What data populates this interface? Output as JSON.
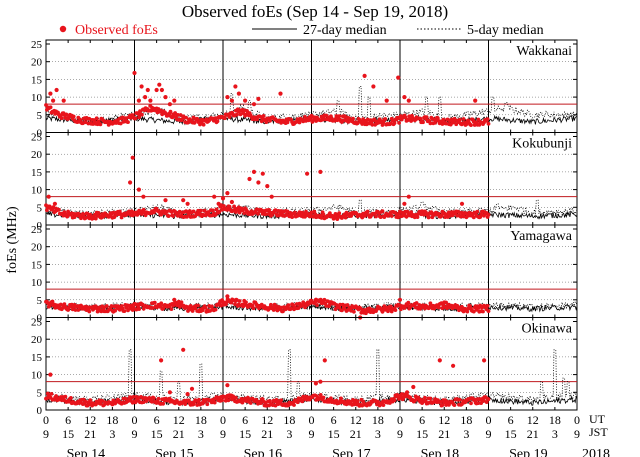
{
  "chart_data": {
    "type": "scatter",
    "title": "Observed foEs (Sep 14 - Sep 19, 2018)",
    "ylabel": "foEs (MHz)",
    "ylim": [
      0,
      25
    ],
    "yticks": [
      0,
      5,
      10,
      15,
      20,
      25
    ],
    "grid": "horizontal dotted",
    "legend": {
      "position": "top",
      "observed_label": "Observed foEs",
      "median27_label": "27-day median",
      "median5_label": "5-day median"
    },
    "colors": {
      "observed": "#e8141c",
      "threshold": "#c0191f",
      "median27": "#000000",
      "median5": "#000000"
    },
    "threshold_MHz": 8,
    "x_axis": {
      "ut_label": "UT",
      "jst_label": "JST",
      "ut_ticks": [
        "0",
        "6",
        "12",
        "18",
        "0",
        "6",
        "12",
        "18",
        "0",
        "6",
        "12",
        "18",
        "0",
        "6",
        "12",
        "18",
        "0",
        "6",
        "12",
        "18",
        "0",
        "6",
        "12",
        "18",
        "0"
      ],
      "jst_ticks": [
        "9",
        "15",
        "21",
        "3",
        "9",
        "15",
        "21",
        "3",
        "9",
        "15",
        "21",
        "3",
        "9",
        "15",
        "21",
        "3",
        "9",
        "15",
        "21",
        "3",
        "9",
        "15",
        "21",
        "3",
        "9"
      ],
      "day_labels": [
        "Sep 14",
        "Sep 15",
        "Sep 16",
        "Sep 17",
        "Sep 18",
        "Sep 19"
      ],
      "year_label": "2018",
      "days": 6
    },
    "panels": [
      {
        "station": "Wakkanai",
        "base": [
          [
            0,
            7
          ],
          [
            0.15,
            5
          ],
          [
            0.4,
            3.5
          ],
          [
            0.7,
            3
          ],
          [
            0.9,
            3.5
          ],
          [
            1.05,
            5
          ],
          [
            1.2,
            7
          ],
          [
            1.35,
            5.5
          ],
          [
            1.6,
            3.5
          ],
          [
            1.8,
            3
          ],
          [
            2.05,
            4.5
          ],
          [
            2.2,
            6
          ],
          [
            2.4,
            4
          ],
          [
            2.7,
            3
          ],
          [
            3.05,
            4
          ],
          [
            3.3,
            4
          ],
          [
            3.6,
            3
          ],
          [
            3.9,
            3
          ],
          [
            4.05,
            4
          ],
          [
            4.3,
            3.5
          ],
          [
            4.6,
            3
          ],
          [
            4.9,
            3
          ],
          [
            5.0,
            3
          ]
        ],
        "spikes": [
          [
            0.05,
            11
          ],
          [
            0.08,
            9
          ],
          [
            0.12,
            12
          ],
          [
            0.2,
            9
          ],
          [
            1.0,
            16.8
          ],
          [
            1.05,
            9
          ],
          [
            1.08,
            13
          ],
          [
            1.12,
            10
          ],
          [
            1.15,
            12
          ],
          [
            1.18,
            9
          ],
          [
            1.25,
            12
          ],
          [
            1.28,
            13.5
          ],
          [
            1.31,
            12
          ],
          [
            1.35,
            10
          ],
          [
            1.4,
            8
          ],
          [
            1.45,
            9
          ],
          [
            2.05,
            10
          ],
          [
            2.1,
            9
          ],
          [
            2.14,
            13
          ],
          [
            2.18,
            11
          ],
          [
            2.25,
            9
          ],
          [
            2.35,
            8
          ],
          [
            2.4,
            9.5
          ],
          [
            2.65,
            11
          ],
          [
            3.6,
            16
          ],
          [
            3.7,
            13
          ],
          [
            3.98,
            15.5
          ],
          [
            4.05,
            10
          ],
          [
            4.1,
            9
          ],
          [
            3.85,
            9
          ],
          [
            4.85,
            9
          ]
        ],
        "cutoff_day": 5.0,
        "median27": [
          [
            0,
            4
          ],
          [
            0.5,
            3
          ],
          [
            1,
            4
          ],
          [
            1.5,
            3
          ],
          [
            2,
            4
          ],
          [
            2.5,
            3
          ],
          [
            3,
            4
          ],
          [
            3.5,
            3
          ],
          [
            4,
            4
          ],
          [
            4.5,
            3
          ],
          [
            5,
            4
          ],
          [
            5.5,
            3
          ],
          [
            6,
            4
          ]
        ],
        "median5": [
          [
            0,
            5
          ],
          [
            0.3,
            4
          ],
          [
            0.5,
            3
          ],
          [
            1,
            5
          ],
          [
            1.25,
            6.5
          ],
          [
            1.5,
            4
          ],
          [
            2,
            5
          ],
          [
            2.2,
            7
          ],
          [
            2.5,
            4
          ],
          [
            3,
            5
          ],
          [
            3.3,
            6
          ],
          [
            3.5,
            4
          ],
          [
            4,
            5
          ],
          [
            4.3,
            6
          ],
          [
            4.5,
            4
          ],
          [
            5,
            6
          ],
          [
            5.2,
            7
          ],
          [
            5.5,
            5
          ],
          [
            6,
            5
          ]
        ],
        "median5_spikes": [
          [
            2.1,
            11
          ],
          [
            2.3,
            9
          ],
          [
            3.3,
            9
          ],
          [
            3.55,
            13
          ],
          [
            3.65,
            10
          ],
          [
            4.3,
            10
          ],
          [
            4.45,
            10
          ],
          [
            5.05,
            10
          ],
          [
            5.2,
            8.5
          ]
        ]
      },
      {
        "station": "Kokubunji",
        "base": [
          [
            0,
            5
          ],
          [
            0.2,
            3
          ],
          [
            0.5,
            2.5
          ],
          [
            0.8,
            3
          ],
          [
            1.0,
            3
          ],
          [
            1.2,
            4
          ],
          [
            1.5,
            3
          ],
          [
            1.9,
            3.5
          ],
          [
            2.0,
            5
          ],
          [
            2.2,
            4
          ],
          [
            2.5,
            3.5
          ],
          [
            2.8,
            3
          ],
          [
            3.0,
            3
          ],
          [
            3.3,
            2.5
          ],
          [
            3.6,
            3
          ],
          [
            3.9,
            3
          ],
          [
            4.05,
            3
          ],
          [
            4.3,
            3
          ],
          [
            4.6,
            3
          ],
          [
            4.9,
            3
          ],
          [
            5.0,
            3
          ]
        ],
        "spikes": [
          [
            0.03,
            8
          ],
          [
            0.1,
            6
          ],
          [
            0.95,
            12
          ],
          [
            0.98,
            19
          ],
          [
            1.05,
            10
          ],
          [
            1.1,
            8
          ],
          [
            1.35,
            7
          ],
          [
            1.55,
            7
          ],
          [
            1.6,
            6
          ],
          [
            1.9,
            8
          ],
          [
            1.95,
            6
          ],
          [
            2.0,
            7.5
          ],
          [
            2.05,
            9
          ],
          [
            2.1,
            6.5
          ],
          [
            2.3,
            13
          ],
          [
            2.35,
            15
          ],
          [
            2.4,
            12
          ],
          [
            2.45,
            14.5
          ],
          [
            2.5,
            11
          ],
          [
            2.55,
            8
          ],
          [
            2.95,
            14.5
          ],
          [
            3.1,
            15
          ],
          [
            4.1,
            8
          ],
          [
            4.05,
            6
          ],
          [
            4.7,
            6
          ]
        ],
        "cutoff_day": 5.0,
        "median27": [
          [
            0,
            3
          ],
          [
            0.5,
            2.5
          ],
          [
            1,
            3
          ],
          [
            1.5,
            2.5
          ],
          [
            2,
            3
          ],
          [
            2.5,
            2.5
          ],
          [
            3,
            3
          ],
          [
            3.5,
            2.5
          ],
          [
            4,
            3
          ],
          [
            4.5,
            2.5
          ],
          [
            5,
            3
          ],
          [
            5.5,
            2.5
          ],
          [
            6,
            3
          ]
        ],
        "median5": [
          [
            0,
            4
          ],
          [
            0.3,
            3.5
          ],
          [
            0.5,
            3
          ],
          [
            1,
            4
          ],
          [
            1.3,
            5
          ],
          [
            1.5,
            3
          ],
          [
            2,
            4.5
          ],
          [
            2.2,
            5
          ],
          [
            2.5,
            3.5
          ],
          [
            3,
            4
          ],
          [
            3.3,
            5
          ],
          [
            3.5,
            3.5
          ],
          [
            4,
            4
          ],
          [
            4.3,
            5
          ],
          [
            4.5,
            3.5
          ],
          [
            5,
            4
          ],
          [
            5.3,
            5
          ],
          [
            5.5,
            3.5
          ],
          [
            6,
            4
          ]
        ],
        "median5_spikes": [
          [
            3.55,
            7
          ],
          [
            4.25,
            6.5
          ],
          [
            5.1,
            6
          ],
          [
            5.55,
            7
          ]
        ]
      },
      {
        "station": "Yamagawa",
        "base": [
          [
            0,
            4
          ],
          [
            0.2,
            3
          ],
          [
            0.5,
            2.5
          ],
          [
            0.8,
            2.5
          ],
          [
            1.0,
            3
          ],
          [
            1.2,
            3.5
          ],
          [
            1.4,
            3
          ],
          [
            1.5,
            4
          ],
          [
            1.6,
            2.5
          ],
          [
            1.9,
            2.5
          ],
          [
            2.0,
            4.5
          ],
          [
            2.2,
            4
          ],
          [
            2.5,
            3
          ],
          [
            2.7,
            2.5
          ],
          [
            3.0,
            4
          ],
          [
            3.1,
            4.5
          ],
          [
            3.3,
            3
          ],
          [
            3.6,
            2
          ],
          [
            3.9,
            2.5
          ],
          [
            4.05,
            3.5
          ],
          [
            4.3,
            3
          ],
          [
            4.5,
            3.5
          ],
          [
            4.7,
            2.5
          ],
          [
            4.9,
            2.5
          ],
          [
            5.0,
            2.5
          ]
        ],
        "spikes": [
          [
            1.45,
            5
          ],
          [
            2.05,
            6
          ],
          [
            2.15,
            5
          ],
          [
            3.05,
            5
          ],
          [
            3.55,
            0
          ],
          [
            4.0,
            5
          ]
        ],
        "cutoff_day": 5.0,
        "median27": [
          [
            0,
            3
          ],
          [
            0.5,
            2.5
          ],
          [
            1,
            3
          ],
          [
            1.5,
            2.5
          ],
          [
            2,
            3
          ],
          [
            2.5,
            2.5
          ],
          [
            3,
            3
          ],
          [
            3.5,
            2.5
          ],
          [
            4,
            3
          ],
          [
            4.5,
            2.5
          ],
          [
            5,
            3
          ],
          [
            5.5,
            2.5
          ],
          [
            6,
            3
          ]
        ],
        "median5": [
          [
            0,
            3.5
          ],
          [
            0.5,
            3
          ],
          [
            1,
            3.5
          ],
          [
            1.5,
            3
          ],
          [
            2,
            3.5
          ],
          [
            2.5,
            3
          ],
          [
            3,
            3.5
          ],
          [
            3.5,
            3
          ],
          [
            4,
            3.5
          ],
          [
            4.5,
            3
          ],
          [
            5,
            3.5
          ],
          [
            5.5,
            3
          ],
          [
            6,
            3.5
          ]
        ],
        "median5_spikes": []
      },
      {
        "station": "Okinawa",
        "base": [
          [
            0,
            4
          ],
          [
            0.2,
            3
          ],
          [
            0.5,
            2
          ],
          [
            0.8,
            2
          ],
          [
            1.0,
            3
          ],
          [
            1.1,
            3
          ],
          [
            1.3,
            2.5
          ],
          [
            1.6,
            2
          ],
          [
            1.9,
            2.5
          ],
          [
            2.0,
            3.5
          ],
          [
            2.2,
            3
          ],
          [
            2.5,
            2
          ],
          [
            2.8,
            2
          ],
          [
            3.0,
            4
          ],
          [
            3.2,
            3
          ],
          [
            3.5,
            2
          ],
          [
            3.8,
            2
          ],
          [
            4.0,
            4
          ],
          [
            4.2,
            3
          ],
          [
            4.5,
            2
          ],
          [
            4.8,
            2.5
          ],
          [
            5.0,
            3
          ]
        ],
        "spikes": [
          [
            0.05,
            10
          ],
          [
            1.3,
            14
          ],
          [
            1.4,
            5
          ],
          [
            1.55,
            17
          ],
          [
            1.65,
            6
          ],
          [
            1.6,
            4.5
          ],
          [
            2.05,
            7
          ],
          [
            3.05,
            7.5
          ],
          [
            3.1,
            8
          ],
          [
            3.15,
            14
          ],
          [
            4.45,
            14
          ],
          [
            4.6,
            12.5
          ],
          [
            4.95,
            14
          ],
          [
            4.15,
            6.5
          ],
          [
            4.08,
            5
          ]
        ],
        "cutoff_day": 5.0,
        "median27": [
          [
            0,
            3
          ],
          [
            0.5,
            2
          ],
          [
            1,
            3
          ],
          [
            1.5,
            2
          ],
          [
            2,
            3
          ],
          [
            2.5,
            2
          ],
          [
            3,
            3
          ],
          [
            3.5,
            2
          ],
          [
            4,
            3
          ],
          [
            4.5,
            2
          ],
          [
            5,
            3
          ],
          [
            5.5,
            2
          ],
          [
            6,
            3
          ]
        ],
        "median5": [
          [
            0,
            4
          ],
          [
            0.5,
            3
          ],
          [
            1,
            4
          ],
          [
            1.5,
            3
          ],
          [
            2,
            4
          ],
          [
            2.5,
            3
          ],
          [
            3,
            4
          ],
          [
            3.5,
            3
          ],
          [
            4,
            4
          ],
          [
            4.5,
            3
          ],
          [
            5,
            4
          ],
          [
            5.5,
            3
          ],
          [
            6,
            4
          ]
        ],
        "median5_spikes": [
          [
            0.95,
            17
          ],
          [
            1.3,
            11
          ],
          [
            1.5,
            8
          ],
          [
            1.75,
            13
          ],
          [
            2.75,
            17
          ],
          [
            2.85,
            8
          ],
          [
            3.75,
            17
          ],
          [
            5.75,
            17
          ],
          [
            5.85,
            9
          ],
          [
            5.6,
            8
          ],
          [
            5.9,
            8
          ]
        ]
      }
    ]
  }
}
